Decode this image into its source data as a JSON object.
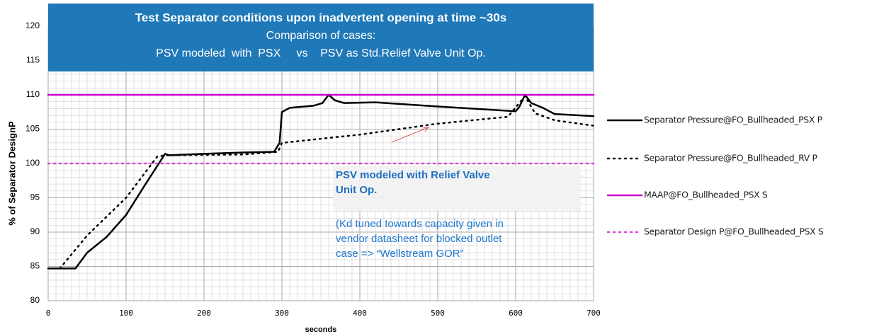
{
  "chart_data": {
    "type": "line",
    "title": "Test Separator conditions upon inadvertent opening at time ~30s",
    "subtitle": [
      "Comparison of cases:",
      "PSV modeled  with  PSX     vs    PSV as Std.Relief Valve Unit Op."
    ],
    "xlabel": "seconds",
    "ylabel": "% of Separator DesignP",
    "xlim": [
      0,
      700
    ],
    "ylim": [
      80,
      120
    ],
    "xticks": [
      0,
      100,
      200,
      300,
      400,
      500,
      600,
      700
    ],
    "yticks": [
      80,
      85,
      90,
      95,
      100,
      105,
      110,
      115,
      120
    ],
    "grid": true,
    "minor_grid_divisions": {
      "x": 10,
      "y": 5
    },
    "legend": "right",
    "series": [
      {
        "name": "Separator Pressure@FO_Bullheaded_PSX P",
        "color": "#000000",
        "dash": "solid",
        "x": [
          0,
          35,
          50,
          75,
          100,
          125,
          150,
          155,
          200,
          250,
          290,
          297,
          300,
          310,
          340,
          352,
          360,
          368,
          380,
          420,
          500,
          600,
          605,
          612,
          620,
          635,
          650,
          700
        ],
        "values": [
          84.7,
          84.7,
          87,
          89.3,
          92.5,
          97,
          101.4,
          101.2,
          101.4,
          101.6,
          101.7,
          103,
          107.5,
          108.1,
          108.4,
          108.8,
          110,
          109.2,
          108.8,
          108.9,
          108.3,
          107.6,
          108.3,
          110,
          108.8,
          108.1,
          107.2,
          106.9
        ]
      },
      {
        "name": "Separator Pressure@FO_Bullheaded_RV P",
        "color": "#000000",
        "dash": "dotted",
        "x": [
          15,
          50,
          100,
          140,
          150,
          250,
          295,
          300,
          400,
          500,
          590,
          612,
          625,
          650,
          700
        ],
        "values": [
          84.7,
          89.5,
          95,
          101,
          101.2,
          101.3,
          101.7,
          103,
          104.2,
          105.8,
          106.8,
          109.8,
          107.3,
          106.3,
          105.5
        ]
      },
      {
        "name": "MAAP@FO_Bullheaded_PSX S",
        "color": "#cc00cc",
        "dash": "solid",
        "x": [
          0,
          700
        ],
        "values": [
          110,
          110
        ]
      },
      {
        "name": "Separator Design P@FO_Bullheaded_PSX S",
        "color": "#dd44dd",
        "dash": "dotted",
        "x": [
          0,
          700
        ],
        "values": [
          100,
          100
        ]
      }
    ],
    "annotation_title": [
      "PSV modeled with Relief Valve",
      "Unit Op."
    ],
    "annotation_text": [
      "(Kd tuned towards capacity given in",
      "vendor datasheet for blocked outlet",
      "case => “Wellstream GOR”"
    ]
  }
}
